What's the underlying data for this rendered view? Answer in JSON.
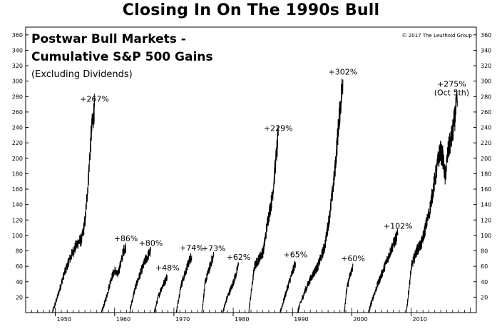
{
  "title": "Closing In On The 1990s Bull",
  "copyright": "© 2017 The Leuthold Group",
  "chart_data": {
    "type": "line",
    "subtitle_lines": [
      "Postwar Bull Markets -",
      "Cumulative S&P 500 Gains",
      "(Excluding Dividends)"
    ],
    "xlabel": "",
    "ylabel": "",
    "xlim": [
      1945,
      2021
    ],
    "ylim": [
      0,
      370
    ],
    "y_ticks": [
      20,
      40,
      60,
      80,
      100,
      120,
      140,
      160,
      180,
      200,
      220,
      240,
      260,
      280,
      300,
      320,
      340,
      360
    ],
    "x_ticks": [
      {
        "value": 1950,
        "label": "1950"
      },
      {
        "value": 1960,
        "label": "1960"
      },
      {
        "value": 1970,
        "label": "1970"
      },
      {
        "value": 1980,
        "label": "1980"
      },
      {
        "value": 1990,
        "label": "1990"
      },
      {
        "value": 2000,
        "label": "2000"
      },
      {
        "value": 2010,
        "label": "2010"
      }
    ],
    "grid": false,
    "series": [
      {
        "start": 1949.5,
        "end": 1956.6,
        "final": 267,
        "label": "+267%",
        "points": [
          [
            0,
            0
          ],
          [
            0.12,
            20
          ],
          [
            0.25,
            45
          ],
          [
            0.38,
            65
          ],
          [
            0.5,
            80
          ],
          [
            0.6,
            90
          ],
          [
            0.7,
            95
          ],
          [
            0.78,
            120
          ],
          [
            0.85,
            170
          ],
          [
            0.92,
            230
          ],
          [
            1,
            267
          ]
        ]
      },
      {
        "start": 1957.8,
        "end": 1961.9,
        "final": 86,
        "label": "+86%",
        "points": [
          [
            0,
            0
          ],
          [
            0.2,
            20
          ],
          [
            0.4,
            45
          ],
          [
            0.55,
            55
          ],
          [
            0.65,
            48
          ],
          [
            0.8,
            65
          ],
          [
            0.9,
            80
          ],
          [
            1,
            86
          ]
        ]
      },
      {
        "start": 1962.5,
        "end": 1966.1,
        "final": 80,
        "label": "+80%",
        "points": [
          [
            0,
            0
          ],
          [
            0.25,
            30
          ],
          [
            0.5,
            50
          ],
          [
            0.75,
            68
          ],
          [
            1,
            80
          ]
        ]
      },
      {
        "start": 1966.7,
        "end": 1968.9,
        "final": 48,
        "label": "+48%",
        "points": [
          [
            0,
            0
          ],
          [
            0.3,
            20
          ],
          [
            0.55,
            32
          ],
          [
            0.8,
            40
          ],
          [
            1,
            48
          ]
        ]
      },
      {
        "start": 1970.4,
        "end": 1973.0,
        "final": 74,
        "label": "+74%",
        "points": [
          [
            0,
            0
          ],
          [
            0.3,
            35
          ],
          [
            0.6,
            52
          ],
          [
            0.8,
            65
          ],
          [
            1,
            74
          ]
        ]
      },
      {
        "start": 1974.7,
        "end": 1976.7,
        "final": 73,
        "label": "+73%",
        "points": [
          [
            0,
            0
          ],
          [
            0.3,
            40
          ],
          [
            0.6,
            55
          ],
          [
            0.8,
            66
          ],
          [
            1,
            73
          ]
        ]
      },
      {
        "start": 1978.2,
        "end": 1980.9,
        "final": 62,
        "label": "+62%",
        "points": [
          [
            0,
            0
          ],
          [
            0.3,
            20
          ],
          [
            0.6,
            35
          ],
          [
            0.85,
            50
          ],
          [
            1,
            62
          ]
        ]
      },
      {
        "start": 1982.6,
        "end": 1987.6,
        "final": 229,
        "label": "+229%",
        "points": [
          [
            0,
            0
          ],
          [
            0.2,
            60
          ],
          [
            0.35,
            70
          ],
          [
            0.5,
            80
          ],
          [
            0.65,
            120
          ],
          [
            0.8,
            150
          ],
          [
            0.9,
            190
          ],
          [
            1,
            229
          ]
        ]
      },
      {
        "start": 1987.9,
        "end": 1990.5,
        "final": 65,
        "label": "+65%",
        "points": [
          [
            0,
            0
          ],
          [
            0.3,
            20
          ],
          [
            0.6,
            40
          ],
          [
            0.85,
            55
          ],
          [
            1,
            65
          ]
        ]
      },
      {
        "start": 1990.8,
        "end": 1998.5,
        "final": 302,
        "label": "+302%",
        "points": [
          [
            0,
            0
          ],
          [
            0.15,
            25
          ],
          [
            0.3,
            45
          ],
          [
            0.45,
            60
          ],
          [
            0.6,
            85
          ],
          [
            0.72,
            130
          ],
          [
            0.82,
            180
          ],
          [
            0.9,
            240
          ],
          [
            1,
            302
          ]
        ]
      },
      {
        "start": 1998.7,
        "end": 2000.2,
        "final": 60,
        "label": "+60%",
        "points": [
          [
            0,
            0
          ],
          [
            0.3,
            30
          ],
          [
            0.6,
            45
          ],
          [
            0.85,
            55
          ],
          [
            1,
            60
          ]
        ]
      },
      {
        "start": 2002.8,
        "end": 2007.8,
        "final": 102,
        "label": "+102%",
        "points": [
          [
            0,
            0
          ],
          [
            0.2,
            25
          ],
          [
            0.4,
            45
          ],
          [
            0.6,
            65
          ],
          [
            0.8,
            85
          ],
          [
            1,
            102
          ]
        ]
      },
      {
        "start": 2009.2,
        "end": 2017.8,
        "final": 275,
        "label": "+275%",
        "label2": "(Oct 5th)",
        "points": [
          [
            0,
            0
          ],
          [
            0.1,
            60
          ],
          [
            0.2,
            80
          ],
          [
            0.3,
            90
          ],
          [
            0.45,
            130
          ],
          [
            0.58,
            180
          ],
          [
            0.66,
            210
          ],
          [
            0.72,
            200
          ],
          [
            0.76,
            175
          ],
          [
            0.82,
            210
          ],
          [
            0.9,
            230
          ],
          [
            1,
            275
          ]
        ]
      }
    ]
  }
}
